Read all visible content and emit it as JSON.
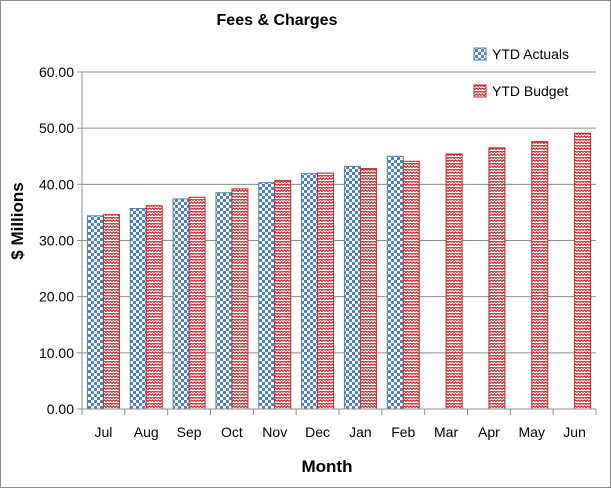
{
  "chart_data": {
    "type": "bar",
    "title": "Fees & Charges",
    "xlabel": "Month",
    "ylabel": "$ Millions",
    "ylim": [
      0,
      60
    ],
    "yticks": [
      "0.00",
      "10.00",
      "20.00",
      "30.00",
      "40.00",
      "50.00",
      "60.00"
    ],
    "grid": true,
    "legend_position": "top-right",
    "categories": [
      "Jul",
      "Aug",
      "Sep",
      "Oct",
      "Nov",
      "Dec",
      "Jan",
      "Feb",
      "Mar",
      "Apr",
      "May",
      "Jun"
    ],
    "series": [
      {
        "name": "YTD Actuals",
        "color": "#4f81bd",
        "pattern": "checkerboard",
        "values": [
          34.4,
          35.7,
          37.4,
          38.5,
          40.3,
          41.9,
          43.2,
          45.0,
          null,
          null,
          null,
          null
        ]
      },
      {
        "name": "YTD Budget",
        "color": "#c0282d",
        "pattern": "zigzag",
        "values": [
          34.6,
          36.2,
          37.7,
          39.2,
          40.7,
          42.0,
          42.8,
          44.1,
          45.4,
          46.5,
          47.6,
          49.1
        ]
      }
    ]
  }
}
